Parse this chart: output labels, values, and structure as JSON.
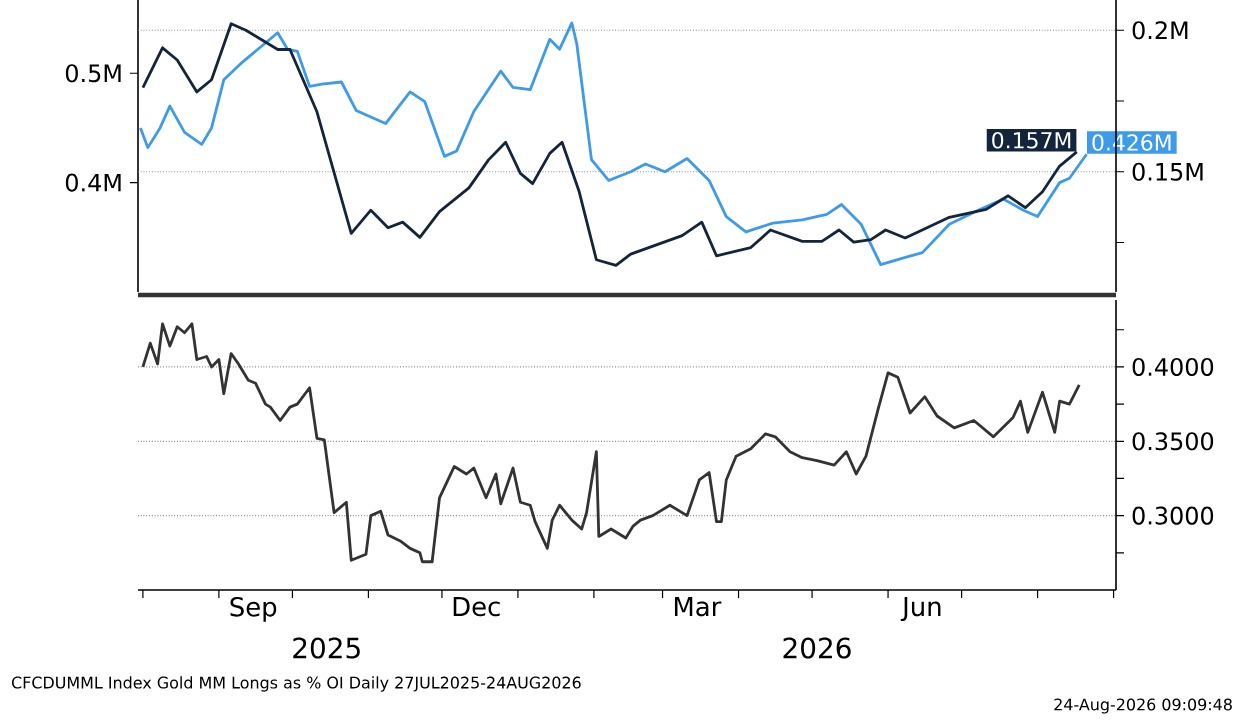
{
  "chart_data": [
    {
      "type": "line",
      "xlim": [
        "2025-07-30",
        "2026-09-02"
      ],
      "ylim": [
        0.3,
        0.567
      ],
      "y2lim": [
        0.1075,
        0.2107
      ],
      "yticks": [
        {
          "value": 0.4,
          "label": "0.4M"
        },
        {
          "value": 0.5,
          "label": "0.5M"
        }
      ],
      "y2ticks": [
        {
          "value": 0.125,
          "label": null
        },
        {
          "value": 0.15,
          "label": "0.15M"
        },
        {
          "value": 0.175,
          "label": null
        },
        {
          "value": 0.2,
          "label": "0.2M"
        }
      ],
      "grid": "y2",
      "tick_labels": "y",
      "series": [
        {
          "color": "#3d9be9",
          "axis": "y",
          "x": [
            "2025-07-31",
            "2025-08-03",
            "2025-08-08",
            "2025-08-12",
            "2025-08-18",
            "2025-08-25",
            "2025-08-29",
            "2025-09-03",
            "2025-09-10",
            "2025-09-18",
            "2025-09-25",
            "2025-09-29",
            "2025-10-03",
            "2025-10-08",
            "2025-10-13",
            "2025-10-21",
            "2025-10-27",
            "2025-11-08",
            "2025-11-18",
            "2025-11-24",
            "2025-12-02",
            "2025-12-07",
            "2025-12-14",
            "2025-12-25",
            "2025-12-30",
            "2026-01-06",
            "2026-01-14",
            "2026-01-18",
            "2026-01-23",
            "2026-01-25",
            "2026-01-31",
            "2026-02-07",
            "2026-02-16",
            "2026-02-22",
            "2026-03-02",
            "2026-03-11",
            "2026-03-20",
            "2026-03-27",
            "2026-04-04",
            "2026-04-15",
            "2026-04-27",
            "2026-05-07",
            "2026-05-13",
            "2026-05-21",
            "2026-05-29",
            "2026-06-07",
            "2026-06-15",
            "2026-06-26",
            "2026-07-08",
            "2026-07-18",
            "2026-07-26",
            "2026-08-01",
            "2026-08-10",
            "2026-08-14",
            "2026-08-21"
          ],
          "values": [
            0.45,
            0.432,
            0.45,
            0.47,
            0.446,
            0.435,
            0.45,
            0.494,
            0.509,
            0.524,
            0.537,
            0.522,
            0.52,
            0.488,
            0.49,
            0.492,
            0.466,
            0.454,
            0.483,
            0.474,
            0.424,
            0.429,
            0.465,
            0.502,
            0.487,
            0.485,
            0.531,
            0.522,
            0.546,
            0.527,
            0.421,
            0.402,
            0.41,
            0.417,
            0.41,
            0.422,
            0.402,
            0.369,
            0.355,
            0.363,
            0.366,
            0.371,
            0.38,
            0.362,
            0.325,
            0.331,
            0.336,
            0.362,
            0.375,
            0.385,
            0.375,
            0.369,
            0.4,
            0.404,
            0.426
          ],
          "value_labels": [
            null,
            null,
            null,
            null,
            null,
            null,
            null,
            null,
            null,
            null,
            null,
            null,
            null,
            null,
            null,
            null,
            null,
            null,
            null,
            null,
            null,
            null,
            null,
            null,
            null,
            null,
            null,
            null,
            null,
            null,
            null,
            null,
            null,
            null,
            null,
            null,
            null,
            null,
            null,
            null,
            null,
            null,
            null,
            null,
            null,
            null,
            null,
            null,
            null,
            null,
            null,
            null,
            null,
            null,
            "0.426M"
          ]
        },
        {
          "color": "#14243a",
          "axis": "y2",
          "x": [
            "2025-08-01",
            "2025-08-09",
            "2025-08-15",
            "2025-08-23",
            "2025-08-29",
            "2025-09-06",
            "2025-09-12",
            "2025-09-25",
            "2025-09-30",
            "2025-10-11",
            "2025-10-25",
            "2025-11-02",
            "2025-11-09",
            "2025-11-15",
            "2025-11-22",
            "2025-11-30",
            "2025-12-12",
            "2025-12-20",
            "2025-12-27",
            "2026-01-02",
            "2026-01-07",
            "2026-01-14",
            "2026-01-19",
            "2026-01-26",
            "2026-02-02",
            "2026-02-10",
            "2026-02-16",
            "2026-03-09",
            "2026-03-17",
            "2026-03-23",
            "2026-04-06",
            "2026-04-14",
            "2026-04-27",
            "2026-05-05",
            "2026-05-12",
            "2026-05-18",
            "2026-05-25",
            "2026-05-31",
            "2026-06-08",
            "2026-06-26",
            "2026-07-11",
            "2026-07-20",
            "2026-07-27",
            "2026-08-03",
            "2026-08-10",
            "2026-08-17"
          ],
          "values": [
            0.1797,
            0.1938,
            0.1895,
            0.1782,
            0.1825,
            0.2023,
            0.2,
            0.1932,
            0.1932,
            0.1712,
            0.1282,
            0.1364,
            0.1302,
            0.1322,
            0.1268,
            0.1359,
            0.1443,
            0.1542,
            0.1604,
            0.1494,
            0.1458,
            0.1565,
            0.1604,
            0.1429,
            0.1189,
            0.1169,
            0.1209,
            0.1274,
            0.1322,
            0.1203,
            0.1232,
            0.1294,
            0.1254,
            0.1254,
            0.1294,
            0.1251,
            0.126,
            0.1294,
            0.1266,
            0.1339,
            0.1367,
            0.1415,
            0.1373,
            0.1429,
            0.152,
            0.157
          ],
          "value_labels": [
            null,
            null,
            null,
            null,
            null,
            null,
            null,
            null,
            null,
            null,
            null,
            null,
            null,
            null,
            null,
            null,
            null,
            null,
            null,
            null,
            null,
            null,
            null,
            null,
            null,
            null,
            null,
            null,
            null,
            null,
            null,
            null,
            null,
            null,
            null,
            null,
            null,
            null,
            null,
            null,
            null,
            null,
            null,
            null,
            null,
            "0.157M"
          ]
        }
      ]
    },
    {
      "type": "line",
      "xlim": [
        "2025-07-30",
        "2026-09-02"
      ],
      "y2lim": [
        0.25,
        0.445
      ],
      "xticks": [
        {
          "value": "2025-08-01",
          "label": null
        },
        {
          "value": "2025-09-01",
          "label": null
        },
        {
          "value": "2025-09-15",
          "label": "Sep"
        },
        {
          "value": "2025-10-01",
          "label": null
        },
        {
          "value": "2025-11-01",
          "label": null
        },
        {
          "value": "2025-12-01",
          "label": null
        },
        {
          "value": "2025-12-15",
          "label": "Dec"
        },
        {
          "value": "2026-01-01",
          "label": null
        },
        {
          "value": "2026-02-01",
          "label": null
        },
        {
          "value": "2026-03-01",
          "label": null
        },
        {
          "value": "2026-03-15",
          "label": "Mar"
        },
        {
          "value": "2026-04-01",
          "label": null
        },
        {
          "value": "2026-05-01",
          "label": null
        },
        {
          "value": "2026-06-01",
          "label": null
        },
        {
          "value": "2026-06-15",
          "label": "Jun"
        },
        {
          "value": "2026-07-01",
          "label": null
        },
        {
          "value": "2026-08-01",
          "label": null
        },
        {
          "value": "2026-09-01",
          "label": null
        }
      ],
      "y2ticks": [
        {
          "value": 0.275,
          "label": null
        },
        {
          "value": 0.3,
          "label": "0.3000"
        },
        {
          "value": 0.325,
          "label": null
        },
        {
          "value": 0.35,
          "label": "0.3500"
        },
        {
          "value": 0.375,
          "label": null
        },
        {
          "value": 0.4,
          "label": "0.4000"
        },
        {
          "value": 0.425,
          "label": null
        }
      ],
      "grid": "y2",
      "series": [
        {
          "color": "#333333",
          "axis": "y2",
          "x": [
            "2025-08-01",
            "2025-08-04",
            "2025-08-07",
            "2025-08-09",
            "2025-08-12",
            "2025-08-15",
            "2025-08-18",
            "2025-08-21",
            "2025-08-23",
            "2025-08-27",
            "2025-08-29",
            "2025-09-01",
            "2025-09-03",
            "2025-09-06",
            "2025-09-09",
            "2025-09-13",
            "2025-09-16",
            "2025-09-20",
            "2025-09-22",
            "2025-09-26",
            "2025-09-30",
            "2025-10-03",
            "2025-10-08",
            "2025-10-11",
            "2025-10-14",
            "2025-10-18",
            "2025-10-23",
            "2025-10-25",
            "2025-10-31",
            "2025-11-02",
            "2025-11-06",
            "2025-11-09",
            "2025-11-14",
            "2025-11-18",
            "2025-11-22",
            "2025-11-23",
            "2025-11-27",
            "2025-11-30",
            "2025-12-06",
            "2025-12-11",
            "2025-12-14",
            "2025-12-19",
            "2025-12-23",
            "2025-12-25",
            "2025-12-30",
            "2026-01-02",
            "2026-01-06",
            "2026-01-08",
            "2026-01-13",
            "2026-01-15",
            "2026-01-18",
            "2026-01-23",
            "2026-01-27",
            "2026-01-29",
            "2026-02-02",
            "2026-02-03",
            "2026-02-08",
            "2026-02-14",
            "2026-02-17",
            "2026-02-20",
            "2026-02-25",
            "2026-03-04",
            "2026-03-11",
            "2026-03-16",
            "2026-03-20",
            "2026-03-23",
            "2026-03-25",
            "2026-03-27",
            "2026-03-31",
            "2026-04-06",
            "2026-04-12",
            "2026-04-16",
            "2026-04-22",
            "2026-04-27",
            "2026-05-03",
            "2026-05-10",
            "2026-05-15",
            "2026-05-19",
            "2026-05-23",
            "2026-05-28",
            "2026-06-01",
            "2026-06-05",
            "2026-06-10",
            "2026-06-16",
            "2026-06-21",
            "2026-06-28",
            "2026-07-06",
            "2026-07-14",
            "2026-07-22",
            "2026-07-25",
            "2026-07-28",
            "2026-08-03",
            "2026-08-08",
            "2026-08-10",
            "2026-08-14",
            "2026-08-18"
          ],
          "values": [
            0.4,
            0.416,
            0.402,
            0.429,
            0.414,
            0.427,
            0.423,
            0.429,
            0.405,
            0.407,
            0.4,
            0.405,
            0.382,
            0.409,
            0.402,
            0.391,
            0.389,
            0.375,
            0.373,
            0.364,
            0.373,
            0.375,
            0.386,
            0.352,
            0.351,
            0.302,
            0.309,
            0.27,
            0.274,
            0.3,
            0.303,
            0.287,
            0.283,
            0.278,
            0.275,
            0.269,
            0.269,
            0.312,
            0.333,
            0.328,
            0.332,
            0.312,
            0.328,
            0.308,
            0.332,
            0.309,
            0.307,
            0.296,
            0.278,
            0.297,
            0.307,
            0.297,
            0.291,
            0.302,
            0.343,
            0.286,
            0.291,
            0.285,
            0.293,
            0.297,
            0.3,
            0.307,
            0.3,
            0.324,
            0.329,
            0.296,
            0.296,
            0.324,
            0.34,
            0.345,
            0.355,
            0.353,
            0.343,
            0.339,
            0.337,
            0.334,
            0.343,
            0.328,
            0.34,
            0.372,
            0.396,
            0.393,
            0.369,
            0.38,
            0.367,
            0.359,
            0.364,
            0.353,
            0.366,
            0.377,
            0.356,
            0.383,
            0.356,
            0.377,
            0.375,
            0.388
          ]
        }
      ],
      "annotations": [
        "2025",
        "2026",
        "CFCDUMML Index Gold MM Longs as % OI Daily 27JUL2025-24AUG2026",
        "24-Aug-2026 09:09:48"
      ]
    }
  ]
}
